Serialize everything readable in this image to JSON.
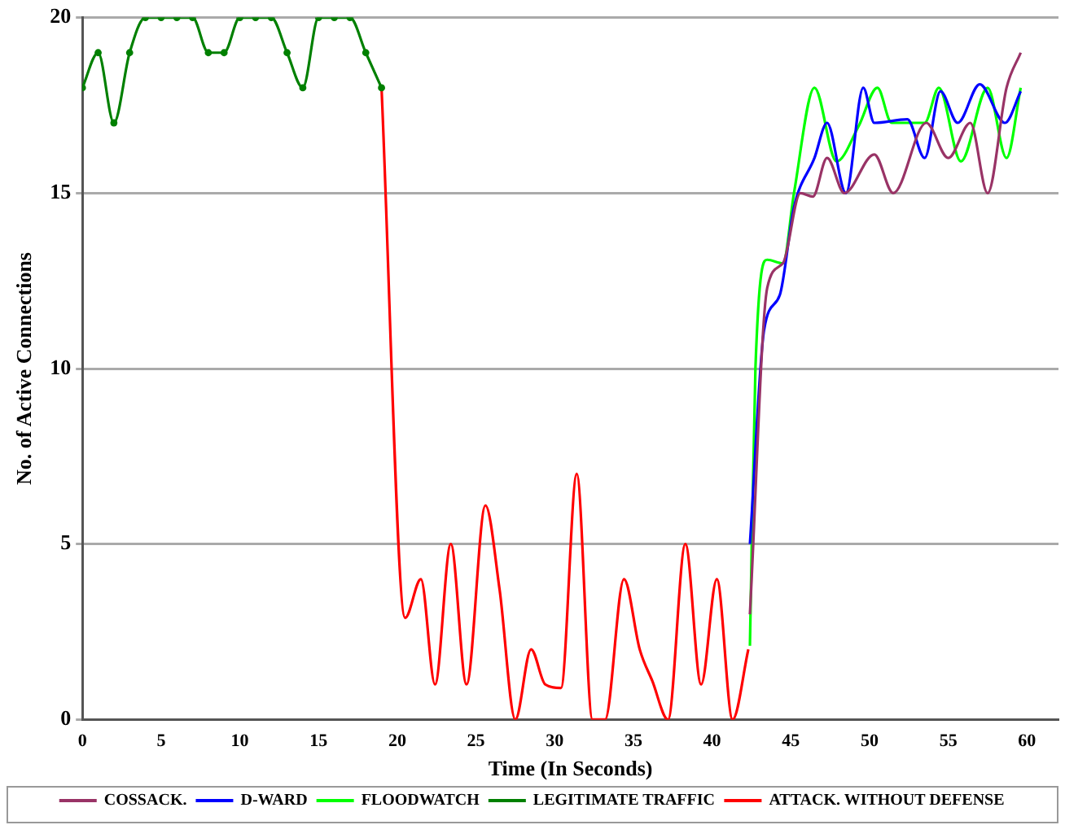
{
  "chart_data": {
    "type": "line",
    "xlabel": "Time (In Seconds)",
    "ylabel": "No. of Active Connections",
    "xlim": [
      0,
      62
    ],
    "xticks": [
      0,
      5,
      10,
      15,
      20,
      25,
      30,
      35,
      40,
      45,
      50,
      55,
      60
    ],
    "ylim": [
      0,
      20
    ],
    "yticks": [
      0,
      5,
      10,
      15,
      20
    ],
    "grid": "y",
    "legend": "bottom",
    "marker": "none",
    "series": [
      {
        "name": "COSSACK.",
        "color": "#993366",
        "x": [
          42.4,
          43.5,
          44.5,
          45.6,
          46.4,
          47.3,
          48.4,
          50.3,
          51.5,
          53.6,
          55,
          56.4,
          57.5,
          58.7,
          59.6
        ],
        "values": [
          3,
          12.3,
          13,
          15,
          14.9,
          16,
          15,
          16.1,
          15,
          17,
          16,
          17,
          15,
          18,
          19
        ]
      },
      {
        "name": "D-WARD",
        "color": "#0000ff",
        "x": [
          42.4,
          43.3,
          44.3,
          45.2,
          46.5,
          47.3,
          48.5,
          49.6,
          50.3,
          52.4,
          53.5,
          54.5,
          55.6,
          57,
          58.6,
          59.6
        ],
        "values": [
          5,
          11.1,
          12.1,
          14.6,
          16,
          17,
          15,
          18,
          17,
          17.1,
          16,
          17.9,
          17,
          18.1,
          17,
          17.9
        ]
      },
      {
        "name": "FLOODWATCH",
        "color": "#00ff00",
        "x": [
          42.4,
          42.75,
          43.5,
          44.5,
          45.2,
          46.5,
          47.9,
          49.3,
          50.5,
          51.4,
          53.5,
          54.4,
          55.8,
          57.5,
          58.7,
          59.6
        ],
        "values": [
          2.1,
          10,
          13.1,
          13,
          15,
          18,
          15.9,
          16.9,
          18,
          17,
          17,
          18,
          15.9,
          18,
          16,
          18
        ]
      },
      {
        "name": "LEGITIMATE TRAFFIC",
        "color": "#008000",
        "marker": "circle",
        "x": [
          0,
          1,
          2,
          3,
          4,
          5,
          6,
          7,
          8,
          9,
          10,
          11,
          12,
          13,
          14,
          15,
          16,
          17,
          18,
          19
        ],
        "values": [
          18,
          19,
          17,
          19,
          20,
          20,
          20,
          20,
          19,
          19,
          20,
          20,
          20,
          19,
          18,
          20,
          20,
          20,
          19,
          18
        ]
      },
      {
        "name": "ATTACK. WITHOUT DEFENSE",
        "color": "#ff0000",
        "x": [
          19,
          20.5,
          21.5,
          22.4,
          23.4,
          24.4,
          25.6,
          26.5,
          27.5,
          28.5,
          29.4,
          30.4,
          31.4,
          32.4,
          33.2,
          34.4,
          35.4,
          36.2,
          37.2,
          38.3,
          39.3,
          40.3,
          41.3,
          42.3
        ],
        "values": [
          18,
          2.9,
          4,
          1,
          5,
          1,
          6.1,
          3.7,
          0,
          2,
          1,
          0.9,
          7,
          0,
          0,
          4,
          2,
          1.1,
          0,
          5,
          1,
          4,
          0,
          2
        ]
      }
    ]
  }
}
